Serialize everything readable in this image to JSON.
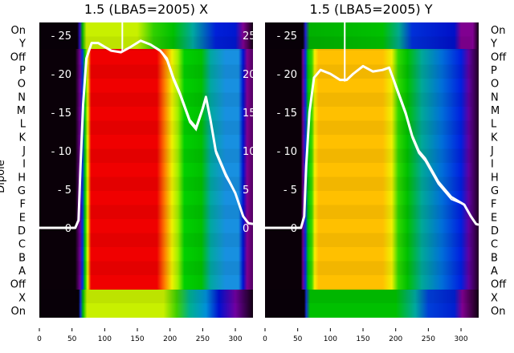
{
  "chart_data": [
    {
      "type": "heatmap",
      "title": "1.5 (LBA5=2005) X",
      "ylabel": "Dipole",
      "row_labels": [
        "On",
        "Y",
        "Off",
        "P",
        "O",
        "N",
        "M",
        "L",
        "K",
        "J",
        "I",
        "H",
        "G",
        "F",
        "E",
        "D",
        "C",
        "B",
        "A",
        "Off",
        "X",
        "On"
      ],
      "x_ticks": [
        0,
        50,
        100,
        150,
        200,
        250,
        300
      ],
      "xlim": [
        0,
        327
      ],
      "overlay_y_ticks": [
        0,
        5,
        10,
        15,
        20,
        25
      ],
      "overlay_ylim": [
        -2.3,
        26.6
      ],
      "colormap_bands": {
        "top": [
          [
            0,
            "#080008"
          ],
          [
            58,
            "#080008"
          ],
          [
            62,
            "#3010c0"
          ],
          [
            66,
            "#00b000"
          ],
          [
            72,
            "#c8f000"
          ],
          [
            150,
            "#c8f000"
          ],
          [
            175,
            "#30d000"
          ],
          [
            205,
            "#00c000"
          ],
          [
            235,
            "#00a8a0"
          ],
          [
            270,
            "#0020d8"
          ],
          [
            300,
            "#0018d0"
          ],
          [
            312,
            "#800090"
          ],
          [
            327,
            "#100010"
          ]
        ],
        "middle": [
          [
            0,
            "#0a0008"
          ],
          [
            55,
            "#0a0008"
          ],
          [
            62,
            "#700090"
          ],
          [
            66,
            "#0030e0"
          ],
          [
            70,
            "#00d000"
          ],
          [
            74,
            "#f0f000"
          ],
          [
            79,
            "#f00000"
          ],
          [
            180,
            "#f00000"
          ],
          [
            192,
            "#ff8000"
          ],
          [
            203,
            "#f0f000"
          ],
          [
            212,
            "#a0f000"
          ],
          [
            222,
            "#00d000"
          ],
          [
            248,
            "#00c000"
          ],
          [
            262,
            "#00a8a0"
          ],
          [
            285,
            "#1890e0"
          ],
          [
            305,
            "#1890e0"
          ],
          [
            312,
            "#0010d0"
          ],
          [
            318,
            "#800090"
          ],
          [
            327,
            "#500060"
          ]
        ],
        "bottom": [
          [
            0,
            "#080008"
          ],
          [
            60,
            "#080008"
          ],
          [
            63,
            "#1030d0"
          ],
          [
            67,
            "#00c000"
          ],
          [
            73,
            "#c8f000"
          ],
          [
            190,
            "#c8f000"
          ],
          [
            210,
            "#40d000"
          ],
          [
            230,
            "#00b090"
          ],
          [
            255,
            "#0090d8"
          ],
          [
            275,
            "#0010d0"
          ],
          [
            300,
            "#7000a0"
          ],
          [
            327,
            "#100010"
          ]
        ]
      },
      "overlay_line": {
        "x": [
          0,
          55,
          60,
          63,
          67,
          72,
          80,
          90,
          100,
          110,
          125,
          140,
          155,
          170,
          185,
          195,
          205,
          215,
          230,
          240,
          250,
          255,
          262,
          270,
          285,
          300,
          312,
          320,
          327
        ],
        "y": [
          0,
          0,
          1,
          8,
          16,
          22,
          24,
          24,
          23.5,
          23,
          22.8,
          23.5,
          24.3,
          23.8,
          23,
          22,
          19.5,
          17.5,
          14,
          13,
          15.5,
          17,
          14,
          10,
          7,
          4.5,
          1.5,
          0.6,
          0.5
        ]
      }
    },
    {
      "type": "heatmap",
      "title": "1.5 (LBA5=2005) Y",
      "row_labels": [
        "On",
        "Y",
        "Off",
        "P",
        "O",
        "N",
        "M",
        "L",
        "K",
        "J",
        "I",
        "H",
        "G",
        "F",
        "E",
        "D",
        "C",
        "B",
        "A",
        "Off",
        "X",
        "On"
      ],
      "x_ticks": [
        0,
        50,
        100,
        150,
        200,
        250,
        300
      ],
      "xlim": [
        0,
        327
      ],
      "overlay_y_ticks": [
        0,
        5,
        10,
        15,
        20,
        25
      ],
      "overlay_ylim": [
        -2.3,
        26.6
      ],
      "colormap_bands": {
        "top": [
          [
            0,
            "#080008"
          ],
          [
            58,
            "#080008"
          ],
          [
            62,
            "#2020d0"
          ],
          [
            68,
            "#00b000"
          ],
          [
            180,
            "#00c000"
          ],
          [
            205,
            "#00a890"
          ],
          [
            225,
            "#0030d8"
          ],
          [
            290,
            "#0010c8"
          ],
          [
            300,
            "#800090"
          ],
          [
            318,
            "#800090"
          ],
          [
            327,
            "#100010"
          ]
        ],
        "middle": [
          [
            0,
            "#0a0008"
          ],
          [
            55,
            "#0a0008"
          ],
          [
            58,
            "#700090"
          ],
          [
            62,
            "#0030e0"
          ],
          [
            66,
            "#00c800"
          ],
          [
            72,
            "#40d800"
          ],
          [
            76,
            "#f8f000"
          ],
          [
            82,
            "#ffc000"
          ],
          [
            180,
            "#ffc000"
          ],
          [
            194,
            "#f0f000"
          ],
          [
            204,
            "#30d800"
          ],
          [
            218,
            "#00c000"
          ],
          [
            240,
            "#00a898"
          ],
          [
            270,
            "#0070d8"
          ],
          [
            300,
            "#0020e0"
          ],
          [
            312,
            "#6000a0"
          ],
          [
            327,
            "#200020"
          ]
        ],
        "bottom": [
          [
            0,
            "#080008"
          ],
          [
            60,
            "#080008"
          ],
          [
            63,
            "#1030d0"
          ],
          [
            69,
            "#00c000"
          ],
          [
            200,
            "#00c000"
          ],
          [
            230,
            "#00a8a0"
          ],
          [
            250,
            "#0040d8"
          ],
          [
            290,
            "#0020d0"
          ],
          [
            302,
            "#800090"
          ],
          [
            327,
            "#100010"
          ]
        ]
      },
      "overlay_line": {
        "x": [
          0,
          55,
          60,
          63,
          68,
          75,
          85,
          100,
          115,
          125,
          135,
          150,
          165,
          180,
          190,
          200,
          215,
          225,
          235,
          245,
          255,
          265,
          285,
          305,
          315,
          323,
          327
        ],
        "y": [
          0,
          0,
          1.5,
          8,
          15,
          19.5,
          20.5,
          20,
          19.2,
          19.2,
          20,
          21,
          20.3,
          20.5,
          20.8,
          18.5,
          15,
          12,
          10,
          9,
          7.5,
          6,
          4,
          3,
          1.5,
          0.5,
          0.4
        ]
      }
    }
  ]
}
